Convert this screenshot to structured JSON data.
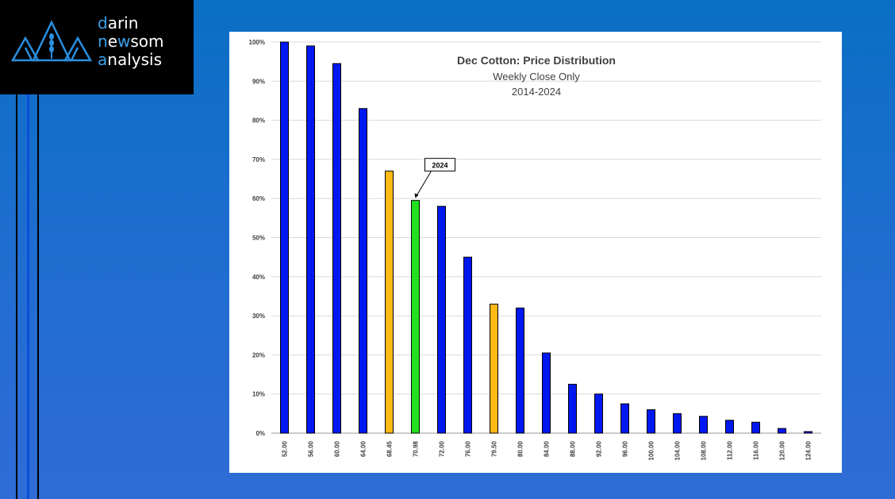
{
  "brand": {
    "line1_first": "d",
    "line1_rest": "arin",
    "line2_first": "n",
    "line2_mid": "e",
    "line2_w": "w",
    "line2_rest": "som",
    "line3_first": "a",
    "line3_rest": "nalysis",
    "colors": {
      "background": "#000000",
      "text": "#ffffff",
      "accent": "#3aa0e8"
    }
  },
  "chart_data": {
    "type": "bar",
    "title": "Dec Cotton: Price Distribution",
    "subtitle": "Weekly Close Only",
    "subtitle2": "2014-2024",
    "xlabel": "",
    "ylabel": "",
    "ylim": [
      0,
      100
    ],
    "yticks": [
      "0%",
      "10%",
      "20%",
      "30%",
      "40%",
      "50%",
      "60%",
      "70%",
      "80%",
      "90%",
      "100%"
    ],
    "categories": [
      "52.00",
      "56.00",
      "60.00",
      "64.00",
      "68.45",
      "70.98",
      "72.00",
      "76.00",
      "79.50",
      "80.00",
      "84.00",
      "88.00",
      "92.00",
      "96.00",
      "100.00",
      "104.00",
      "108.00",
      "112.00",
      "116.00",
      "120.00",
      "124.00"
    ],
    "values": [
      100,
      99,
      94.5,
      83,
      67,
      59.5,
      58,
      45,
      33,
      32,
      20.5,
      12.5,
      10,
      7.5,
      6,
      5,
      4.3,
      3.3,
      2.8,
      1.2,
      0.4
    ],
    "colors": [
      "#0018f0",
      "#0018f0",
      "#0018f0",
      "#0018f0",
      "#ffb915",
      "#22e01e",
      "#0018f0",
      "#0018f0",
      "#ffb915",
      "#0018f0",
      "#0018f0",
      "#0018f0",
      "#0018f0",
      "#0018f0",
      "#0018f0",
      "#0018f0",
      "#0018f0",
      "#0018f0",
      "#0018f0",
      "#0018f0",
      "#0018f0"
    ],
    "grid": true,
    "annotation": {
      "text": "2024",
      "category": "70.98"
    }
  }
}
